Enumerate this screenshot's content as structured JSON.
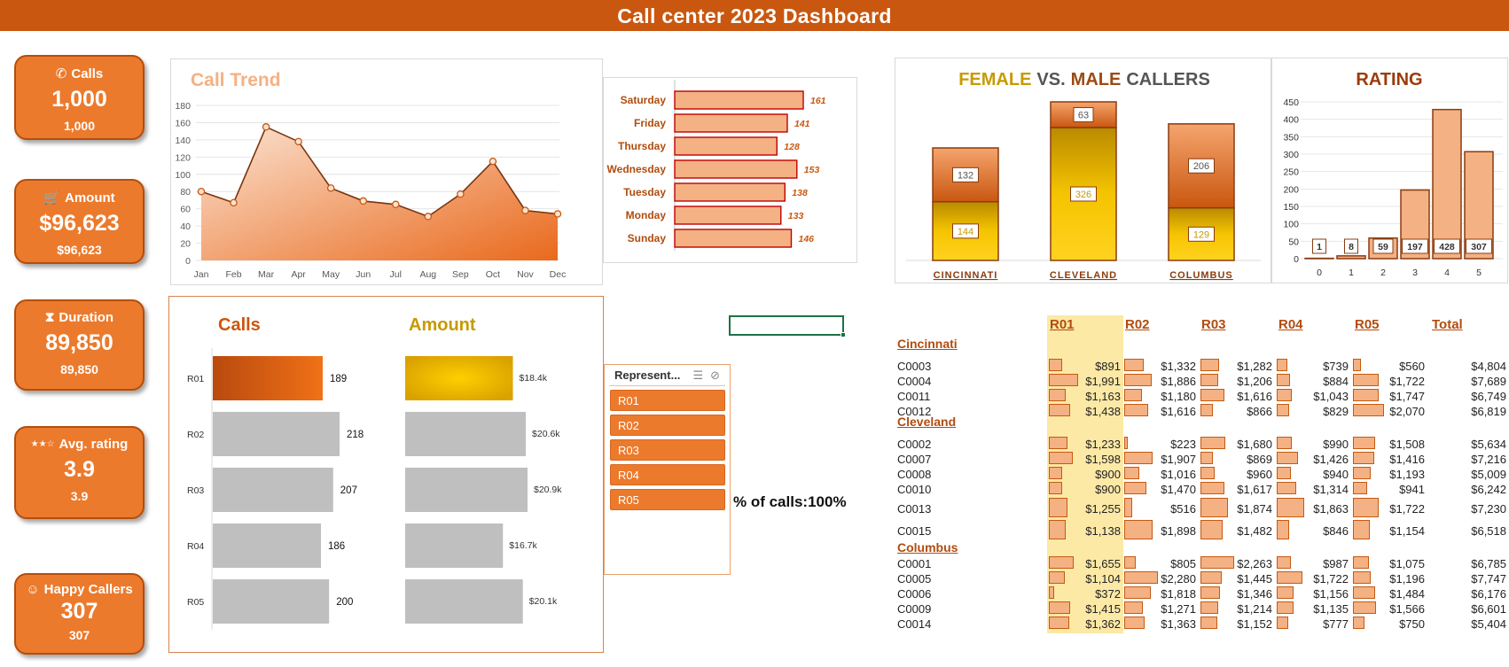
{
  "title": "Call center 2023 Dashboard",
  "kpis": [
    {
      "label": "Calls",
      "icon": "phone-icon",
      "glyph": "✆",
      "value": "1,000",
      "sub": "1,000"
    },
    {
      "label": "Amount",
      "icon": "cart-icon",
      "glyph": "🛒",
      "value": "$96,623",
      "sub": "$96,623"
    },
    {
      "label": "Duration",
      "icon": "hourglass-icon",
      "glyph": "⧗",
      "value": "89,850",
      "sub": "89,850"
    },
    {
      "label": "Avg. rating",
      "icon": "stars-icon",
      "glyph": "★★☆",
      "value": "3.9",
      "sub": "3.9"
    },
    {
      "label": "Happy Callers",
      "icon": "smiley-icon",
      "glyph": "☺",
      "value": "307",
      "sub": "307"
    }
  ],
  "slicer": {
    "title": "Represent...",
    "multi_select_icon": "multi-select-icon",
    "clear_filter_icon": "clear-filter-icon",
    "items": [
      "R01",
      "R02",
      "R03",
      "R04",
      "R05"
    ]
  },
  "percent_calls": "% of calls:100%",
  "colors": {
    "accent": "#c9570f",
    "kpi": "#ec7a2c",
    "bar_light": "#f4b183",
    "bar_border": "#c00000",
    "gold": "#f5c400",
    "grey": "#bfbfbf"
  },
  "chart_data": [
    {
      "id": "call-trend",
      "type": "area",
      "title": "Call Trend",
      "categories": [
        "Jan",
        "Feb",
        "Mar",
        "Apr",
        "May",
        "Jun",
        "Jul",
        "Aug",
        "Sep",
        "Oct",
        "Nov",
        "Dec"
      ],
      "values": [
        80,
        67,
        155,
        138,
        84,
        69,
        65,
        51,
        77,
        115,
        58,
        54
      ],
      "ylim": [
        0,
        180
      ],
      "yticks": [
        "0",
        "20",
        "40",
        "60",
        "80",
        "100",
        "120",
        "140",
        "160",
        "180"
      ],
      "grid": true
    },
    {
      "id": "weekday-calls",
      "type": "bar",
      "orientation": "horizontal",
      "categories": [
        "Saturday",
        "Friday",
        "Thursday",
        "Wednesday",
        "Tuesday",
        "Monday",
        "Sunday"
      ],
      "values": [
        161,
        141,
        128,
        153,
        138,
        133,
        146
      ],
      "labels": [
        "161",
        "141",
        "128",
        "153",
        "138",
        "133",
        "146"
      ]
    },
    {
      "id": "gender-callers",
      "type": "bar",
      "stacked": true,
      "title_parts": [
        "FEMALE",
        "VS.",
        "MALE",
        "CALLERS"
      ],
      "categories": [
        "CINCINNATI",
        "CLEVELAND",
        "COLUMBUS"
      ],
      "series": [
        {
          "name": "Female",
          "values": [
            144,
            326,
            129
          ],
          "labels": [
            "144",
            "326",
            "129"
          ]
        },
        {
          "name": "Male",
          "values": [
            132,
            63,
            206
          ],
          "labels": [
            "132",
            "63",
            "206"
          ]
        }
      ]
    },
    {
      "id": "rating",
      "type": "bar",
      "title": "RATING",
      "categories": [
        "0",
        "1",
        "2",
        "3",
        "4",
        "5"
      ],
      "values": [
        1,
        8,
        59,
        197,
        428,
        307
      ],
      "labels": [
        "1",
        "8",
        "59",
        "197",
        "428",
        "307"
      ],
      "ylim": [
        0,
        450
      ],
      "yticks": [
        "0",
        "50",
        "100",
        "150",
        "200",
        "250",
        "300",
        "350",
        "400",
        "450"
      ],
      "grid": true
    },
    {
      "id": "rep-calls",
      "type": "bar",
      "orientation": "horizontal",
      "title": "Calls",
      "categories": [
        "R01",
        "R02",
        "R03",
        "R04",
        "R05"
      ],
      "values": [
        189,
        218,
        207,
        186,
        200
      ],
      "labels": [
        "189",
        "218",
        "207",
        "186",
        "200"
      ],
      "highlighted": "R01"
    },
    {
      "id": "rep-amount",
      "type": "bar",
      "orientation": "horizontal",
      "title": "Amount",
      "categories": [
        "R01",
        "R02",
        "R03",
        "R04",
        "R05"
      ],
      "values": [
        18.4,
        20.6,
        20.9,
        16.7,
        20.1
      ],
      "labels": [
        "$18.4k",
        "$20.6k",
        "$20.9k",
        "$16.7k",
        "$20.1k"
      ],
      "highlighted": "R01"
    },
    {
      "id": "rep-customer-table",
      "type": "table",
      "headers": [
        "R01",
        "R02",
        "R03",
        "R04",
        "R05",
        "Total"
      ],
      "groups": [
        {
          "city": "Cincinnati",
          "rows": [
            {
              "id": "C0003",
              "values": [
                891,
                1332,
                1282,
                739,
                560
              ],
              "labels": [
                "$891",
                "$1,332",
                "$1,282",
                "$739",
                "$560"
              ],
              "total": "$4,804"
            },
            {
              "id": "C0004",
              "values": [
                1991,
                1886,
                1206,
                884,
                1722
              ],
              "labels": [
                "$1,991",
                "$1,886",
                "$1,206",
                "$884",
                "$1,722"
              ],
              "total": "$7,689"
            },
            {
              "id": "C0011",
              "values": [
                1163,
                1180,
                1616,
                1043,
                1747
              ],
              "labels": [
                "$1,163",
                "$1,180",
                "$1,616",
                "$1,043",
                "$1,747"
              ],
              "total": "$6,749"
            },
            {
              "id": "C0012",
              "values": [
                1438,
                1616,
                866,
                829,
                2070
              ],
              "labels": [
                "$1,438",
                "$1,616",
                "$866",
                "$829",
                "$2,070"
              ],
              "total": "$6,819"
            }
          ]
        },
        {
          "city": "Cleveland",
          "rows": [
            {
              "id": "C0002",
              "values": [
                1233,
                223,
                1680,
                990,
                1508
              ],
              "labels": [
                "$1,233",
                "$223",
                "$1,680",
                "$990",
                "$1,508"
              ],
              "total": "$5,634"
            },
            {
              "id": "C0007",
              "values": [
                1598,
                1907,
                869,
                1426,
                1416
              ],
              "labels": [
                "$1,598",
                "$1,907",
                "$869",
                "$1,426",
                "$1,416"
              ],
              "total": "$7,216"
            },
            {
              "id": "C0008",
              "values": [
                900,
                1016,
                960,
                940,
                1193
              ],
              "labels": [
                "$900",
                "$1,016",
                "$960",
                "$940",
                "$1,193"
              ],
              "total": "$5,009"
            },
            {
              "id": "C0010",
              "values": [
                900,
                1470,
                1617,
                1314,
                941
              ],
              "labels": [
                "$900",
                "$1,470",
                "$1,617",
                "$1,314",
                "$941"
              ],
              "total": "$6,242"
            },
            {
              "id": "C0013",
              "values": [
                1255,
                516,
                1874,
                1863,
                1722
              ],
              "labels": [
                "$1,255",
                "$516",
                "$1,874",
                "$1,863",
                "$1,722"
              ],
              "total": "$7,230"
            },
            {
              "id": "C0015",
              "values": [
                1138,
                1898,
                1482,
                846,
                1154
              ],
              "labels": [
                "$1,138",
                "$1,898",
                "$1,482",
                "$846",
                "$1,154"
              ],
              "total": "$6,518"
            }
          ]
        },
        {
          "city": "Columbus",
          "rows": [
            {
              "id": "C0001",
              "values": [
                1655,
                805,
                2263,
                987,
                1075
              ],
              "labels": [
                "$1,655",
                "$805",
                "$2,263",
                "$987",
                "$1,075"
              ],
              "total": "$6,785"
            },
            {
              "id": "C0005",
              "values": [
                1104,
                2280,
                1445,
                1722,
                1196
              ],
              "labels": [
                "$1,104",
                "$2,280",
                "$1,445",
                "$1,722",
                "$1,196"
              ],
              "total": "$7,747"
            },
            {
              "id": "C0006",
              "values": [
                372,
                1818,
                1346,
                1156,
                1484
              ],
              "labels": [
                "$372",
                "$1,818",
                "$1,346",
                "$1,156",
                "$1,484"
              ],
              "total": "$6,176"
            },
            {
              "id": "C0009",
              "values": [
                1415,
                1271,
                1214,
                1135,
                1566
              ],
              "labels": [
                "$1,415",
                "$1,271",
                "$1,214",
                "$1,135",
                "$1,566"
              ],
              "total": "$6,601"
            },
            {
              "id": "C0014",
              "values": [
                1362,
                1363,
                1152,
                777,
                750
              ],
              "labels": [
                "$1,362",
                "$1,363",
                "$1,152",
                "$777",
                "$750"
              ],
              "total": "$5,404"
            }
          ]
        }
      ]
    }
  ]
}
